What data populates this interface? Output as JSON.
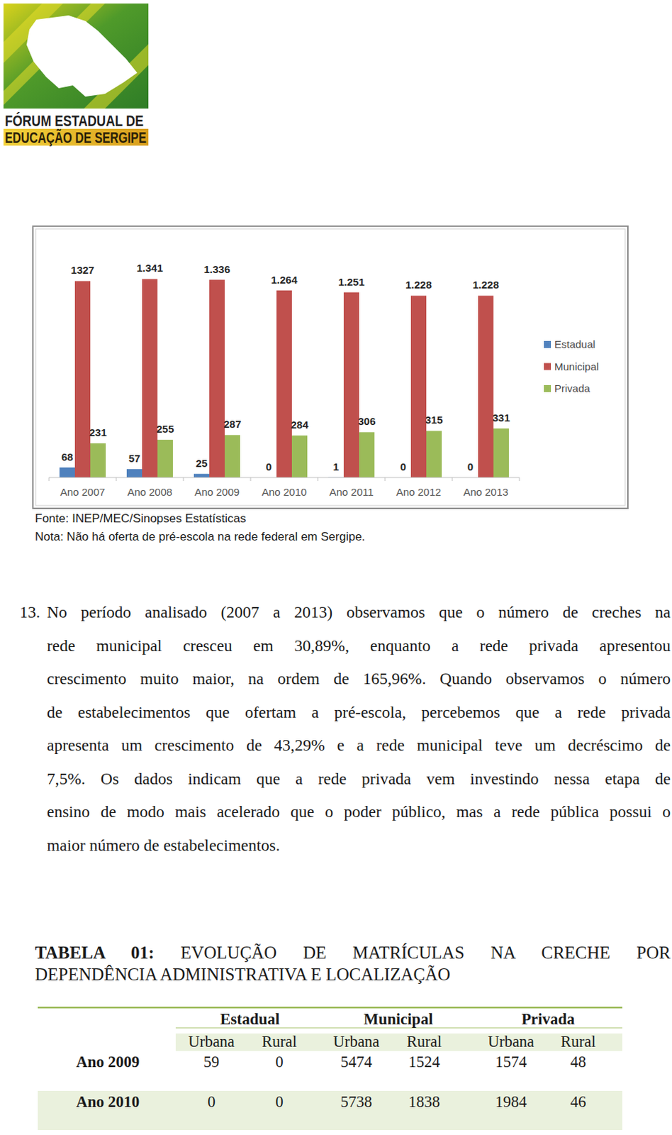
{
  "logo": {
    "lines": [
      "FÓRUM ESTADUAL DE",
      "EDUCAÇÃO DE SERGIPE"
    ]
  },
  "chart_data": {
    "type": "bar",
    "categories": [
      "Ano 2007",
      "Ano 2008",
      "Ano 2009",
      "Ano 2010",
      "Ano 2011",
      "Ano 2012",
      "Ano 2013"
    ],
    "series": [
      {
        "name": "Estadual",
        "color": "#4f81bd",
        "values": [
          68,
          57,
          25,
          0,
          1,
          0,
          0
        ]
      },
      {
        "name": "Municipal",
        "color": "#c0504d",
        "values": [
          1327,
          1341,
          1336,
          1264,
          1251,
          1228,
          1228
        ],
        "value_labels": [
          "1327",
          "1.341",
          "1.336",
          "1.264",
          "1.251",
          "1.228",
          "1.228"
        ]
      },
      {
        "name": "Privada",
        "color": "#9bbb59",
        "values": [
          231,
          255,
          287,
          284,
          306,
          315,
          331
        ]
      }
    ],
    "ylim": [
      0,
      1400
    ],
    "data_labels": true,
    "tick_labels": "x",
    "legend": "right",
    "grid": false
  },
  "chart_footer": {
    "source": "Fonte: INEP/MEC/Sinopses Estatísticas",
    "note": "Nota: Não há oferta de pré-escola na rede federal em Sergipe."
  },
  "paragraph": {
    "number": "13.",
    "lines": [
      "No período analisado (2007 a 2013) observamos que o número de creches na",
      "rede municipal cresceu em 30,89%, enquanto a rede privada apresentou",
      "crescimento muito maior, na ordem de 165,96%. Quando observamos o número",
      "de estabelecimentos que ofertam a pré-escola, percebemos que a rede privada",
      "apresenta um crescimento de 43,29% e a rede municipal teve um decréscimo de",
      "7,5%. Os dados indicam que a rede privada vem investindo nessa etapa de",
      "ensino de modo mais acelerado que o poder público, mas a rede pública possui o",
      "maior número de estabelecimentos."
    ]
  },
  "table": {
    "label": "TABELA 01:",
    "title_lines": [
      "EVOLUÇÃO DE MATRÍCULAS NA CRECHE POR",
      "DEPENDÊNCIA ADMINISTRATIVA E LOCALIZAÇÃO"
    ],
    "groups": [
      "Estadual",
      "Municipal",
      "Privada"
    ],
    "subheaders": [
      "Urbana",
      "Rural",
      "Urbana",
      "Rural",
      "Urbana",
      "Rural"
    ],
    "rows": [
      {
        "label": "Ano 2009",
        "values": [
          59,
          0,
          5474,
          1524,
          1574,
          48
        ]
      },
      {
        "label": "Ano 2010",
        "values": [
          0,
          0,
          5738,
          1838,
          1984,
          46
        ]
      }
    ]
  }
}
